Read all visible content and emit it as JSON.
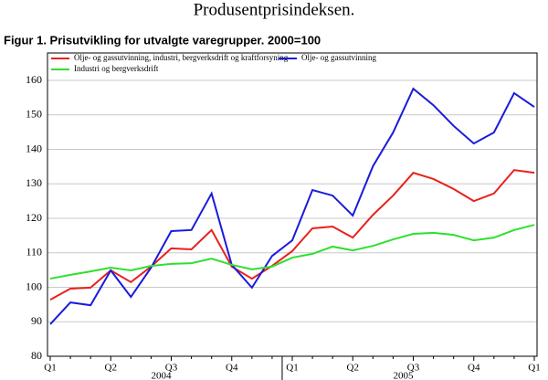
{
  "page_title": "Produsentprisindeksen.",
  "chart_data": {
    "type": "line",
    "title": "Figur 1. Prisutvikling for utvalgte varegrupper. 2000=100",
    "categories": [
      "Q1",
      null,
      null,
      "Q2",
      null,
      null,
      "Q3",
      null,
      null,
      "Q4",
      null,
      null,
      "Q1",
      null,
      null,
      "Q2",
      null,
      null,
      "Q3",
      null,
      null,
      "Q4",
      null,
      null,
      "Q1"
    ],
    "year_labels": [
      "2004",
      "2005"
    ],
    "series": [
      {
        "name": "Olje- og gassutvinning, industri, bergverksdrift og kraftforsyning",
        "color": "#e8211d",
        "values": [
          96.4,
          99.6,
          99.9,
          104.9,
          101.5,
          106.0,
          111.3,
          111.0,
          116.6,
          106.0,
          102.5,
          106.2,
          110.5,
          117.1,
          117.6,
          114.4,
          121.0,
          126.6,
          133.2,
          131.4,
          128.5,
          125.0,
          127.2,
          134.0,
          133.2
        ]
      },
      {
        "name": "Olje- og gassutvinning",
        "color": "#1a1adc",
        "values": [
          89.3,
          95.6,
          94.8,
          104.9,
          97.2,
          105.7,
          116.3,
          116.6,
          127.2,
          106.5,
          99.9,
          109.1,
          113.6,
          128.2,
          126.6,
          120.8,
          135.1,
          144.9,
          157.6,
          152.8,
          146.8,
          141.7,
          144.9,
          156.3,
          152.3
        ]
      },
      {
        "name": "Industri og bergverksdrift",
        "color": "#2ee02e",
        "values": [
          102.5,
          103.6,
          104.6,
          105.7,
          104.9,
          106.2,
          106.8,
          107.0,
          108.3,
          106.5,
          105.2,
          106.0,
          108.6,
          109.7,
          111.8,
          110.7,
          112.0,
          113.9,
          115.5,
          115.8,
          115.2,
          113.6,
          114.4,
          116.6,
          118.1
        ]
      }
    ],
    "ylim": [
      80,
      160
    ],
    "yticks": [
      80,
      90,
      100,
      110,
      120,
      130,
      140,
      150,
      160
    ],
    "grid": true
  }
}
